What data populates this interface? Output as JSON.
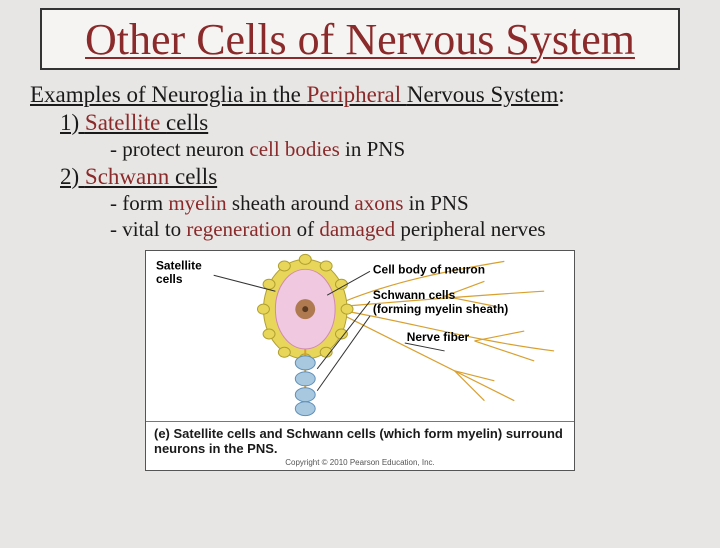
{
  "title": "Other Cells of Nervous System",
  "heading_prefix": "Examples of Neuroglia in the ",
  "heading_red": "Peripheral ",
  "heading_suffix": "Nervous System",
  "heading_colon": ":",
  "item1_num": "1) ",
  "item1_red": "Satellite ",
  "item1_rest": "cells",
  "item1_sub1_prefix": "- protect neuron ",
  "item1_sub1_red": "cell bodies",
  "item1_sub1_suffix": " in PNS",
  "item2_num": "2) ",
  "item2_red": "Schwann ",
  "item2_rest": "cells",
  "item2_sub1_prefix": "- form ",
  "item2_sub1_red1": "myelin",
  "item2_sub1_mid": " sheath around ",
  "item2_sub1_red2": "axons",
  "item2_sub1_suffix": " in PNS",
  "item2_sub2_prefix": "- vital to ",
  "item2_sub2_red1": "regeneration",
  "item2_sub2_mid": " of ",
  "item2_sub2_red2": "damaged",
  "item2_sub2_suffix": " peripheral nerves",
  "diagram": {
    "labels": {
      "satellite": "Satellite\ncells",
      "cellbody": "Cell body of neuron",
      "schwann": "Schwann cells\n(forming myelin sheath)",
      "fiber": "Nerve fiber"
    },
    "colors": {
      "satellite_fill": "#e8d65a",
      "satellite_stroke": "#b0a030",
      "cellbody_fill": "#f0c8e0",
      "cellbody_stroke": "#d08ab0",
      "nucleus_fill": "#b07a50",
      "schwann_fill": "#a8c8e0",
      "schwann_stroke": "#6090b8",
      "axon_stroke": "#d8a030",
      "dendrite_stroke": "#d8a030",
      "leader": "#333"
    }
  },
  "caption": "(e) Satellite cells and Schwann cells (which form myelin) surround neurons in the PNS.",
  "copyright": "Copyright © 2010 Pearson Education, Inc."
}
